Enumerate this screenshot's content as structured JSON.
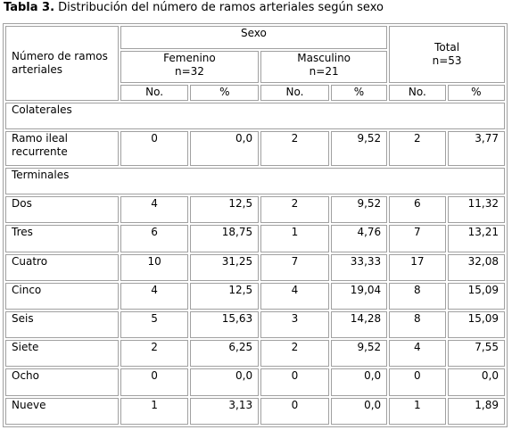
{
  "caption": {
    "bold": "Tabla 3.",
    "text": " Distribución del número de ramos arteriales según sexo"
  },
  "header": {
    "row_label": "Número de ramos arteriales",
    "group": "Sexo",
    "femenino": "Femenino",
    "femenino_n": "n=32",
    "masculino": "Masculino",
    "masculino_n": "n=21",
    "total": "Total",
    "total_n": "n=53",
    "col_no": "No.",
    "col_pct": "%"
  },
  "sections": [
    {
      "title": "Colaterales",
      "rows": [
        {
          "label": "Ramo ileal recurrente",
          "f_no": "0",
          "f_pct": "0,0",
          "m_no": "2",
          "m_pct": "9,52",
          "t_no": "2",
          "t_pct": "3,77"
        }
      ]
    },
    {
      "title": "Terminales",
      "rows": [
        {
          "label": "Dos",
          "f_no": "4",
          "f_pct": "12,5",
          "m_no": "2",
          "m_pct": "9,52",
          "t_no": "6",
          "t_pct": "11,32"
        },
        {
          "label": "Tres",
          "f_no": "6",
          "f_pct": "18,75",
          "m_no": "1",
          "m_pct": "4,76",
          "t_no": "7",
          "t_pct": "13,21"
        },
        {
          "label": "Cuatro",
          "f_no": "10",
          "f_pct": "31,25",
          "m_no": "7",
          "m_pct": "33,33",
          "t_no": "17",
          "t_pct": "32,08"
        },
        {
          "label": "Cinco",
          "f_no": "4",
          "f_pct": "12,5",
          "m_no": "4",
          "m_pct": "19,04",
          "t_no": "8",
          "t_pct": "15,09"
        },
        {
          "label": "Seis",
          "f_no": "5",
          "f_pct": "15,63",
          "m_no": "3",
          "m_pct": "14,28",
          "t_no": "8",
          "t_pct": "15,09"
        },
        {
          "label": "Siete",
          "f_no": "2",
          "f_pct": "6,25",
          "m_no": "2",
          "m_pct": "9,52",
          "t_no": "4",
          "t_pct": "7,55"
        },
        {
          "label": "Ocho",
          "f_no": "0",
          "f_pct": "0,0",
          "m_no": "0",
          "m_pct": "0,0",
          "t_no": "0",
          "t_pct": "0,0"
        },
        {
          "label": "Nueve",
          "f_no": "1",
          "f_pct": "3,13",
          "m_no": "0",
          "m_pct": "0,0",
          "t_no": "1",
          "t_pct": "1,89"
        }
      ]
    }
  ]
}
